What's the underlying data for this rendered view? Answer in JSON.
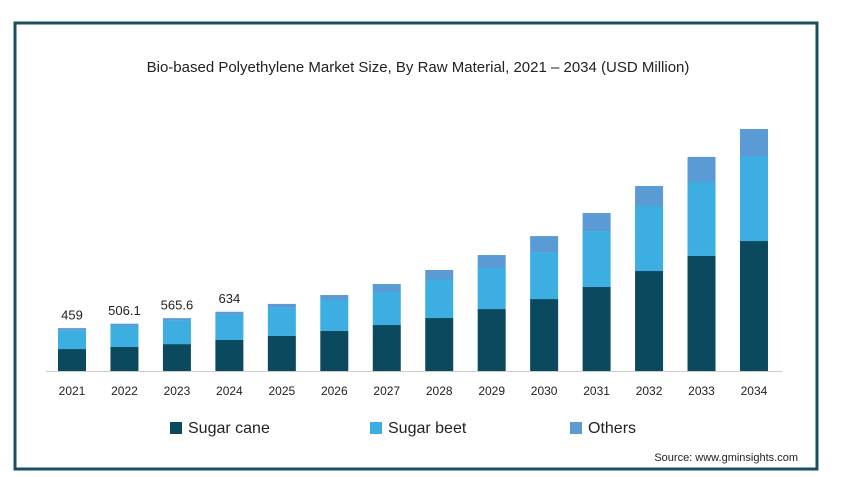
{
  "chart_data": {
    "type": "stacked_bar",
    "title": "Bio-based Polyethylene Market Size, By Raw Material, 2021 – 2034 (USD Million)",
    "categories": [
      "2021",
      "2022",
      "2023",
      "2024",
      "2025",
      "2026",
      "2027",
      "2028",
      "2029",
      "2030",
      "2031",
      "2032",
      "2033",
      "2034"
    ],
    "series": [
      {
        "name": "Sugar cane",
        "color": "#0b4a5e",
        "values": [
          235,
          257,
          288,
          332,
          375,
          428,
          492,
          567,
          663,
          770,
          899,
          1070,
          1231,
          1391
        ]
      },
      {
        "name": "Sugar beet",
        "color": "#3caee2",
        "values": [
          200,
          225,
          248,
          268,
          300,
          332,
          353,
          407,
          439,
          503,
          599,
          696,
          792,
          910
        ]
      },
      {
        "name": "Others",
        "color": "#5b9bd5",
        "values": [
          24,
          24.1,
          29.6,
          34,
          43,
          53,
          86,
          107,
          139,
          171,
          193,
          214,
          268,
          289
        ]
      }
    ],
    "totals": [
      459,
      506.1,
      565.6,
      634,
      null,
      null,
      null,
      null,
      null,
      null,
      null,
      null,
      null,
      null
    ],
    "source": "Source: www.gminsights.com"
  }
}
